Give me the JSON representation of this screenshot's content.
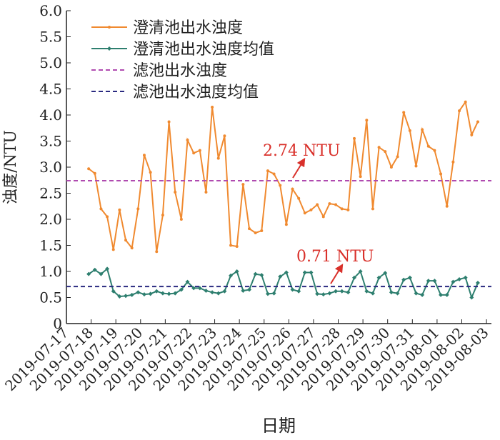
{
  "chart_data": {
    "type": "line",
    "x_label": "日期",
    "y_label": "浊度/NTU",
    "xlim": [
      0,
      17.2
    ],
    "ylim": [
      0,
      6
    ],
    "xticks": [
      {
        "value": 0,
        "label": "2019-07-17"
      },
      {
        "value": 1,
        "label": "2019-07-18"
      },
      {
        "value": 2,
        "label": "2019-07-19"
      },
      {
        "value": 3,
        "label": "2019-07-20"
      },
      {
        "value": 4,
        "label": "2019-07-21"
      },
      {
        "value": 5,
        "label": "2019-07-22"
      },
      {
        "value": 6,
        "label": "2019-07-23"
      },
      {
        "value": 7,
        "label": "2019-07-24"
      },
      {
        "value": 8,
        "label": "2019-07-25"
      },
      {
        "value": 9,
        "label": "2019-07-26"
      },
      {
        "value": 10,
        "label": "2019-07-27"
      },
      {
        "value": 11,
        "label": "2019-07-28"
      },
      {
        "value": 12,
        "label": "2019-07-29"
      },
      {
        "value": 13,
        "label": "2019-07-30"
      },
      {
        "value": 14,
        "label": "2019-07-31"
      },
      {
        "value": 15,
        "label": "2019-08-01"
      },
      {
        "value": 16,
        "label": "2019-08-02"
      },
      {
        "value": 17,
        "label": "2019-08-03"
      }
    ],
    "yticks": [
      0,
      0.5,
      {
        "value": 1,
        "label": "1.0"
      },
      1.5,
      {
        "value": 2,
        "label": "2.0"
      },
      2.5,
      {
        "value": 3,
        "label": "3.0"
      },
      3.5,
      {
        "value": 4,
        "label": "4.0"
      },
      4.5,
      {
        "value": 5,
        "label": "5.0"
      },
      5.5,
      {
        "value": 6,
        "label": "6.0"
      }
    ],
    "legend": "top-left",
    "x": [
      0.9,
      1.15,
      1.4,
      1.65,
      1.9,
      2.15,
      2.4,
      2.65,
      2.9,
      3.15,
      3.4,
      3.65,
      3.9,
      4.15,
      4.4,
      4.65,
      4.9,
      5.15,
      5.4,
      5.65,
      5.9,
      6.15,
      6.4,
      6.65,
      6.9,
      7.15,
      7.4,
      7.65,
      7.9,
      8.15,
      8.4,
      8.65,
      8.9,
      9.15,
      9.4,
      9.65,
      9.9,
      10.15,
      10.4,
      10.65,
      10.9,
      11.15,
      11.4,
      11.65,
      11.9,
      12.15,
      12.4,
      12.65,
      12.9,
      13.15,
      13.4,
      13.65,
      13.9,
      14.15,
      14.4,
      14.65,
      14.9,
      15.15,
      15.4,
      15.65,
      15.9,
      16.15,
      16.4,
      16.65
    ],
    "series": [
      {
        "name": "澄清池出水浊度",
        "color": "#f08a30",
        "marker": "circle",
        "values": [
          2.97,
          2.88,
          2.2,
          2.05,
          1.42,
          2.18,
          1.6,
          1.45,
          2.2,
          3.23,
          2.9,
          1.38,
          2.08,
          3.87,
          2.52,
          2.0,
          3.52,
          3.27,
          3.32,
          2.52,
          4.15,
          3.17,
          3.6,
          1.5,
          1.48,
          2.67,
          1.82,
          1.74,
          1.78,
          2.93,
          2.87,
          2.65,
          1.9,
          2.58,
          2.4,
          2.12,
          2.18,
          2.28,
          2.05,
          2.3,
          2.28,
          2.2,
          2.18,
          3.55,
          2.82,
          3.9,
          2.2,
          3.38,
          3.3,
          3.0,
          3.2,
          4.05,
          3.7,
          3.02,
          3.72,
          3.4,
          3.32,
          2.87,
          2.25,
          3.1,
          4.08,
          4.25,
          3.62,
          3.87
        ]
      },
      {
        "name": "澄清池出水浊度均值",
        "color": "#2e7f6f",
        "marker": "diamond",
        "values": [
          0.95,
          1.03,
          0.95,
          1.05,
          0.62,
          0.52,
          0.53,
          0.55,
          0.6,
          0.56,
          0.57,
          0.62,
          0.58,
          0.57,
          0.58,
          0.65,
          0.8,
          0.68,
          0.68,
          0.63,
          0.6,
          0.58,
          0.62,
          0.92,
          1.0,
          0.63,
          0.65,
          0.95,
          0.93,
          0.57,
          0.58,
          0.9,
          0.98,
          0.65,
          0.62,
          0.98,
          0.98,
          0.57,
          0.56,
          0.58,
          0.62,
          0.62,
          0.6,
          0.88,
          1.0,
          0.62,
          0.58,
          0.88,
          0.97,
          0.6,
          0.58,
          0.84,
          0.88,
          0.58,
          0.55,
          0.82,
          0.82,
          0.55,
          0.55,
          0.8,
          0.85,
          0.88,
          0.5,
          0.78
        ]
      },
      {
        "name": "滤池出水浊度",
        "color": "#b04bb0",
        "style": "dashed",
        "value": 2.74,
        "value_label": "2.74 NTU"
      },
      {
        "name": "滤池出水浊度均值",
        "color": "#2a2a80",
        "style": "dashed",
        "value": 0.71,
        "value_label": "0.71 NTU"
      }
    ]
  }
}
